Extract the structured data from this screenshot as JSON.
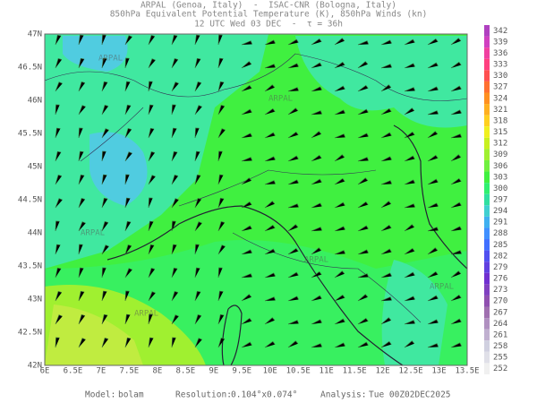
{
  "header": {
    "line1": "ARPAL (Genoa, Italy)  -  ISAC-CNR (Bologna, Italy)",
    "line2": "850hPa Equivalent Potential Temperature (K), 850hPa Winds (kn)",
    "line3": "12 UTC Wed 03 DEC  -  τ = 36h"
  },
  "map": {
    "lon_labels": [
      "6E",
      "6.5E",
      "7E",
      "7.5E",
      "8E",
      "8.5E",
      "9E",
      "9.5E",
      "10E",
      "10.5E",
      "11E",
      "11.5E",
      "12E",
      "12.5E",
      "13E",
      "13.5E"
    ],
    "lat_labels": [
      "47N",
      "46.5N",
      "46N",
      "45.5N",
      "45N",
      "44.5N",
      "44N",
      "43.5N",
      "43N",
      "42.5N",
      "42N"
    ],
    "watermark": "ARPAL"
  },
  "colorbar": {
    "levels": [
      342,
      339,
      336,
      333,
      330,
      327,
      324,
      321,
      318,
      315,
      312,
      309,
      306,
      303,
      300,
      297,
      294,
      291,
      288,
      285,
      282,
      279,
      276,
      273,
      270,
      267,
      264,
      261,
      258,
      255,
      252
    ],
    "colors": [
      "#b040c0",
      "#d040c0",
      "#f040a0",
      "#ff4080",
      "#ff5050",
      "#ff7030",
      "#ff9020",
      "#ffb020",
      "#ffd020",
      "#f0f020",
      "#c8f020",
      "#a0f030",
      "#70f040",
      "#40f040",
      "#30f070",
      "#30e0a0",
      "#40d0d0",
      "#40b0f0",
      "#4090ff",
      "#4070ff",
      "#5050f0",
      "#6040e0",
      "#7030d0",
      "#8040c0",
      "#9050b0",
      "#a070b0",
      "#b090c0",
      "#c0b0d0",
      "#d0d0e0",
      "#e0e0e8",
      "#f0f0f0"
    ]
  },
  "footer": {
    "model_label": "Model:",
    "model": "bolam",
    "resolution_label": "Resolution:",
    "resolution": "0.104°x0.074°",
    "analysis_label": "Analysis:",
    "analysis": "Tue 00Z02DEC2025"
  }
}
